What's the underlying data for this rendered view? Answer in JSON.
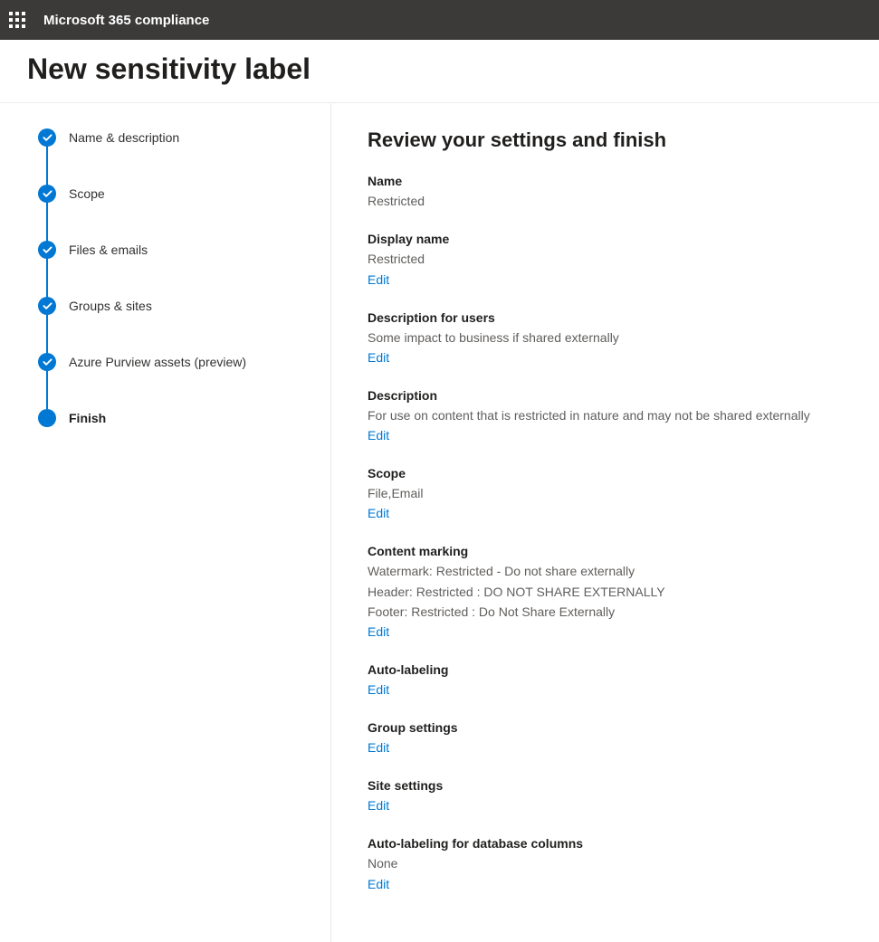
{
  "theme": {
    "topbar_bg": "#3b3a39",
    "topbar_fg": "#ffffff",
    "accent": "#0078d4",
    "text_primary": "#201f1e",
    "text_secondary": "#605e5c",
    "border": "#edebe9"
  },
  "header": {
    "app_title": "Microsoft 365 compliance",
    "page_title": "New sensitivity label"
  },
  "wizard": {
    "steps": [
      {
        "label": "Name & description",
        "state": "done"
      },
      {
        "label": "Scope",
        "state": "done"
      },
      {
        "label": "Files & emails",
        "state": "done"
      },
      {
        "label": "Groups & sites",
        "state": "done"
      },
      {
        "label": "Azure Purview assets (preview)",
        "state": "done"
      },
      {
        "label": "Finish",
        "state": "current"
      }
    ]
  },
  "review": {
    "title": "Review your settings and finish",
    "edit_label": "Edit",
    "sections": {
      "name": {
        "label": "Name",
        "value": "Restricted",
        "editable": false
      },
      "display_name": {
        "label": "Display name",
        "value": "Restricted",
        "editable": true
      },
      "desc_users": {
        "label": "Description for users",
        "value": "Some impact to business if shared externally",
        "editable": true
      },
      "description": {
        "label": "Description",
        "value": "For use on content that is restricted in nature and may not be shared externally",
        "editable": true
      },
      "scope": {
        "label": "Scope",
        "value": "File,Email",
        "editable": true
      },
      "content_marking": {
        "label": "Content marking",
        "lines": [
          "Watermark: Restricted - Do not share externally",
          "Header: Restricted : DO NOT SHARE EXTERNALLY",
          "Footer: Restricted : Do Not Share Externally"
        ],
        "editable": true
      },
      "auto_labeling": {
        "label": "Auto-labeling",
        "value": "",
        "editable": true
      },
      "group_settings": {
        "label": "Group settings",
        "value": "",
        "editable": true
      },
      "site_settings": {
        "label": "Site settings",
        "value": "",
        "editable": true
      },
      "auto_label_db": {
        "label": "Auto-labeling for database columns",
        "value": "None",
        "editable": true
      }
    }
  }
}
